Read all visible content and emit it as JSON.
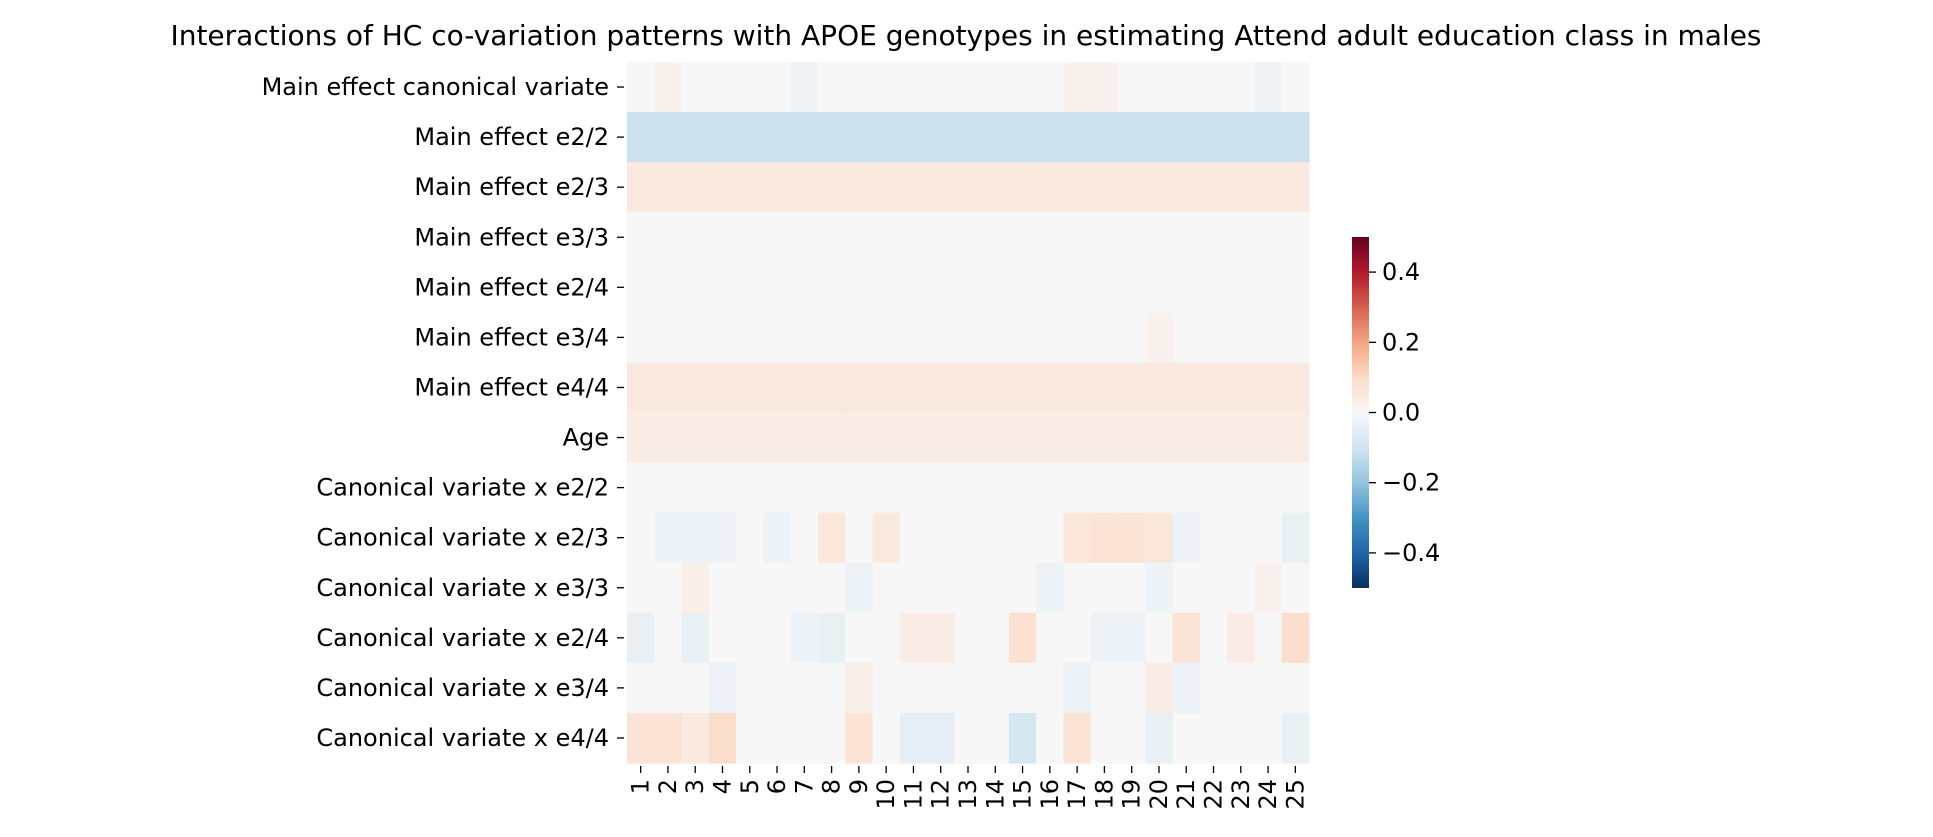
{
  "chart_data": {
    "type": "heatmap",
    "title": "Interactions of HC co-variation patterns with APOE genotypes in estimating Attend adult education class in males",
    "xlabel": "",
    "ylabel": "",
    "colormap": "RdBu_r",
    "vmin": -0.5,
    "vmax": 0.5,
    "colorbar_ticks": [
      0.4,
      0.2,
      0.0,
      -0.2,
      -0.4
    ],
    "colorbar_tick_labels": [
      "0.4",
      "0.2",
      "0.0",
      "−0.2",
      "−0.4"
    ],
    "x_labels": [
      "1",
      "2",
      "3",
      "4",
      "5",
      "6",
      "7",
      "8",
      "9",
      "10",
      "11",
      "12",
      "13",
      "14",
      "15",
      "16",
      "17",
      "18",
      "19",
      "20",
      "21",
      "22",
      "23",
      "24",
      "25"
    ],
    "y_labels": [
      "Main effect canonical variate",
      "Main effect e2/2",
      "Main effect e2/3",
      "Main effect e3/3",
      "Main effect e2/4",
      "Main effect e3/4",
      "Main effect e4/4",
      "Age",
      "Canonical variate x e2/2",
      "Canonical variate x e2/3",
      "Canonical variate x e3/3",
      "Canonical variate x e2/4",
      "Canonical variate x e3/4",
      "Canonical variate x e4/4"
    ],
    "values": [
      [
        0,
        0.02,
        0,
        0,
        0,
        0,
        -0.02,
        0,
        0,
        0,
        0,
        0,
        0,
        0,
        0,
        0,
        0.02,
        0.02,
        0,
        0,
        0,
        0,
        0,
        -0.02,
        0
      ],
      [
        -0.11,
        -0.11,
        -0.11,
        -0.11,
        -0.11,
        -0.11,
        -0.11,
        -0.11,
        -0.11,
        -0.11,
        -0.11,
        -0.11,
        -0.11,
        -0.11,
        -0.11,
        -0.11,
        -0.11,
        -0.11,
        -0.11,
        -0.11,
        -0.11,
        -0.11,
        -0.11,
        -0.11,
        -0.11
      ],
      [
        0.05,
        0.05,
        0.05,
        0.05,
        0.05,
        0.05,
        0.05,
        0.05,
        0.05,
        0.05,
        0.05,
        0.05,
        0.05,
        0.05,
        0.05,
        0.05,
        0.05,
        0.05,
        0.05,
        0.05,
        0.05,
        0.05,
        0.05,
        0.05,
        0.05
      ],
      [
        0,
        0,
        0,
        0,
        0,
        0,
        0,
        0,
        0,
        0,
        0,
        0,
        0,
        0,
        0,
        0,
        0,
        0,
        0,
        0,
        0,
        0,
        0,
        0,
        0
      ],
      [
        0,
        0,
        0,
        0,
        0,
        0,
        0,
        0,
        0,
        0,
        0,
        0,
        0,
        0,
        0,
        0,
        0,
        0,
        0,
        0,
        0,
        0,
        0,
        0,
        0
      ],
      [
        0,
        0,
        0,
        0,
        0,
        0,
        0,
        0,
        0,
        0,
        0,
        0,
        0,
        0,
        0,
        0,
        0,
        0,
        0,
        0.02,
        0,
        0,
        0,
        0,
        0
      ],
      [
        0.05,
        0.05,
        0.05,
        0.05,
        0.05,
        0.05,
        0.05,
        0.05,
        0.05,
        0.05,
        0.05,
        0.05,
        0.05,
        0.05,
        0.05,
        0.05,
        0.05,
        0.05,
        0.05,
        0.05,
        0.05,
        0.05,
        0.05,
        0.05,
        0.05
      ],
      [
        0.04,
        0.04,
        0.04,
        0.04,
        0.04,
        0.04,
        0.04,
        0.04,
        0.04,
        0.04,
        0.04,
        0.04,
        0.04,
        0.04,
        0.04,
        0.04,
        0.04,
        0.04,
        0.04,
        0.04,
        0.04,
        0.04,
        0.04,
        0.04,
        0.04
      ],
      [
        0,
        0,
        0,
        0,
        0,
        0,
        0,
        0,
        0,
        0,
        0,
        0,
        0,
        0,
        0,
        0,
        0,
        0,
        0,
        0,
        0,
        0,
        0,
        0,
        0
      ],
      [
        0,
        -0.03,
        -0.03,
        -0.03,
        0,
        -0.03,
        0,
        0.06,
        0,
        0.05,
        0,
        0,
        0,
        0,
        0,
        0,
        0.06,
        0.07,
        0.07,
        0.06,
        -0.03,
        0,
        0,
        0,
        -0.04
      ],
      [
        0,
        0,
        0.03,
        0,
        0,
        0,
        0,
        0,
        -0.03,
        0,
        0,
        0,
        0,
        0,
        0,
        -0.03,
        0,
        0,
        0,
        -0.03,
        0,
        0,
        0,
        0.02,
        0
      ],
      [
        -0.04,
        0,
        -0.04,
        0,
        0,
        0,
        -0.03,
        -0.04,
        0,
        0,
        0.04,
        0.04,
        0,
        0,
        0.08,
        0,
        0,
        -0.03,
        -0.03,
        0,
        0.07,
        0,
        0.04,
        0,
        0.09
      ],
      [
        0,
        0,
        0,
        -0.03,
        0,
        0,
        0,
        0,
        0.03,
        0,
        0,
        0,
        0,
        0,
        0,
        0,
        -0.03,
        0,
        0,
        0.04,
        -0.03,
        0,
        0,
        0,
        0
      ],
      [
        0.07,
        0.07,
        0.05,
        0.09,
        0,
        0,
        0,
        0,
        0.07,
        0,
        -0.05,
        -0.05,
        0,
        0,
        -0.09,
        0,
        0.07,
        0,
        0,
        -0.04,
        0,
        0,
        0,
        0,
        -0.04
      ]
    ]
  }
}
